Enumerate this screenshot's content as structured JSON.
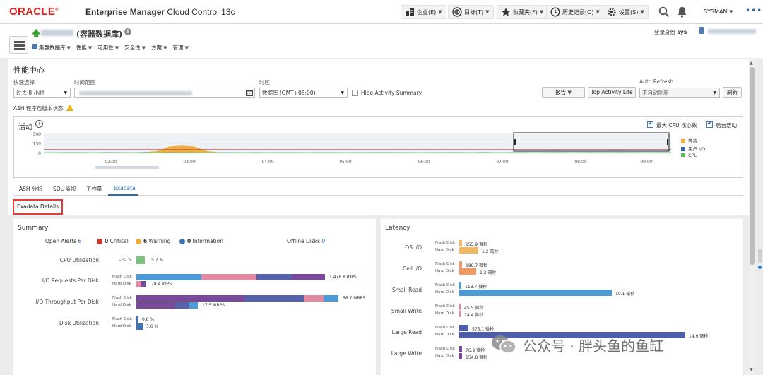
{
  "topbar": {
    "logo": "ORACLE",
    "product_bold": "Enterprise Manager",
    "product_rest": "Cloud Control 13c",
    "nav": [
      {
        "label": "企业(E)",
        "icon": "enterprise-icon"
      },
      {
        "label": "目标(T)",
        "icon": "target-icon"
      },
      {
        "label": "收藏夹(F)",
        "icon": "star-icon"
      },
      {
        "label": "历史记录(O)",
        "icon": "history-icon"
      },
      {
        "label": "设置(S)",
        "icon": "gear-icon"
      }
    ],
    "user": "SYSMAN",
    "more": "•••"
  },
  "target": {
    "name_suffix": "(容器数据库)",
    "login_label": "登录身份",
    "login_user": "sys",
    "menu": [
      "集群数据库",
      "性能",
      "可用性",
      "安全性",
      "方案",
      "管理"
    ]
  },
  "perf": {
    "title": "性能中心",
    "quick_select_label": "快速选择",
    "quick_select_value": "过去 8 小时",
    "time_range_label": "时间范围",
    "timezone_label": "时区",
    "timezone_value": "数据库 (GMT+08:00)",
    "hide_summary": "Hide Activity Summary",
    "report_btn": "报告",
    "top_activity_btn": "Top Activity Lite",
    "auto_refresh_label": "Auto Refresh",
    "auto_refresh_value": "不自动刷新",
    "refresh_btn": "刷新",
    "ash_status": "ASH 程序包版本状态"
  },
  "activity": {
    "title": "活动",
    "max_cpu": "最大 CPU 核心数",
    "background": "后台活动",
    "legend": [
      {
        "name": "等待",
        "color": "#f0ad3c"
      },
      {
        "name": "用户 I/O",
        "color": "#3e62a8"
      },
      {
        "name": "CPU",
        "color": "#5cb85c"
      }
    ]
  },
  "chart_data": {
    "type": "area",
    "title": "活动",
    "yticks": [
      0,
      150,
      300
    ],
    "ylim": [
      0,
      300
    ],
    "xticks": [
      "02:00",
      "03:00",
      "04:00",
      "05:00",
      "06:00",
      "07:00",
      "08:00",
      "09:00"
    ],
    "max_cpu_line": 60,
    "series": [
      {
        "name": "CPU",
        "values": [
          12,
          12,
          14,
          13,
          12,
          14,
          13,
          12,
          13,
          12,
          14,
          12,
          13,
          12,
          12,
          13,
          12,
          14,
          12,
          13,
          12,
          12,
          13,
          12,
          12,
          13,
          12,
          14,
          13,
          12,
          12,
          13,
          12,
          14,
          12,
          13,
          12,
          13,
          12,
          12,
          13,
          14,
          12,
          13,
          12,
          13,
          14,
          12,
          12,
          13,
          12
        ]
      },
      {
        "name": "等待",
        "values": [
          0,
          0,
          0,
          0,
          0,
          0,
          0,
          0,
          0,
          20,
          90,
          105,
          90,
          20,
          0,
          0,
          0,
          0,
          0,
          0,
          0,
          0,
          0,
          0,
          0,
          0,
          0,
          0,
          0,
          0,
          0,
          0,
          0,
          0,
          0,
          0,
          0,
          0,
          0,
          0,
          0,
          0,
          0,
          0,
          0,
          0,
          0,
          0,
          0,
          0,
          0
        ]
      },
      {
        "name": "用户 I/O",
        "values": [
          2,
          2,
          3,
          2,
          2,
          3,
          2,
          2,
          3,
          2,
          2,
          3,
          2,
          2,
          3,
          2,
          2,
          3,
          2,
          2,
          3,
          2,
          2,
          3,
          2,
          2,
          3,
          2,
          2,
          3,
          2,
          2,
          3,
          2,
          2,
          3,
          2,
          2,
          3,
          2,
          2,
          3,
          2,
          2,
          3,
          2,
          2,
          3,
          2,
          2,
          3
        ]
      }
    ]
  },
  "tabs": [
    "ASH 分析",
    "SQL 监视",
    "工作量",
    "Exadata"
  ],
  "details_btn": "Exadata Details",
  "summary": {
    "title": "Summary",
    "open_alerts_label": "Open Alerts",
    "open_alerts": "6",
    "critical_count": "0",
    "critical_label": "Critical",
    "warning_count": "6",
    "warning_label": "Warning",
    "info_count": "0",
    "info_label": "Information",
    "offline_label": "Offline Disks",
    "offline_count": "0",
    "cpu_label": "CPU Utilization",
    "cpu_pct_label": "CPU %",
    "cpu_value": "5.7 %",
    "io_req_label": "I/O Requests Per Disk",
    "io_req_flash": "1,478.8 IOPS",
    "io_req_hard": "78.4 IOPS",
    "io_tp_label": "I/O Throughput Per Disk",
    "io_tp_flash": "58.7 MBPS",
    "io_tp_hard": "17.5 MBPS",
    "disk_util_label": "Disk Utilization",
    "disk_flash": "0.8 %",
    "disk_hard": "3.6 %",
    "flash_disk": "Flash Disk",
    "hard_disk": "Hard Disk"
  },
  "latency": {
    "title": "Latency",
    "rows": [
      {
        "label": "OS I/O",
        "flash": "155.9 微秒",
        "hard": "1.2 毫秒",
        "flash_color": "#f0b862",
        "hard_color": "#f0b862"
      },
      {
        "label": "Cell I/O",
        "flash": "189.7 微秒",
        "hard": "1.2 毫秒",
        "flash_color": "#ef9a62",
        "hard_color": "#ef9a62"
      },
      {
        "label": "Small Read",
        "flash": "118.7 微秒",
        "hard": "10.1 毫秒",
        "flash_color": "#4c9bd6",
        "hard_color": "#4c9bd6"
      },
      {
        "label": "Small Write",
        "flash": "45.5 微秒",
        "hard": "74.4 微秒",
        "flash_color": "#e28aa3",
        "hard_color": "#e28aa3"
      },
      {
        "label": "Large Read",
        "flash": "575.1 微秒",
        "hard": "14.9 毫秒",
        "flash_color": "#4f5ea8",
        "hard_color": "#4f5ea8"
      },
      {
        "label": "Large Write",
        "flash": "76.9 微秒",
        "hard": "154.8 微秒",
        "flash_color": "#7a4a9a",
        "hard_color": "#7a4a9a"
      }
    ]
  },
  "watermark": "公众号 · 胖头鱼的鱼缸"
}
